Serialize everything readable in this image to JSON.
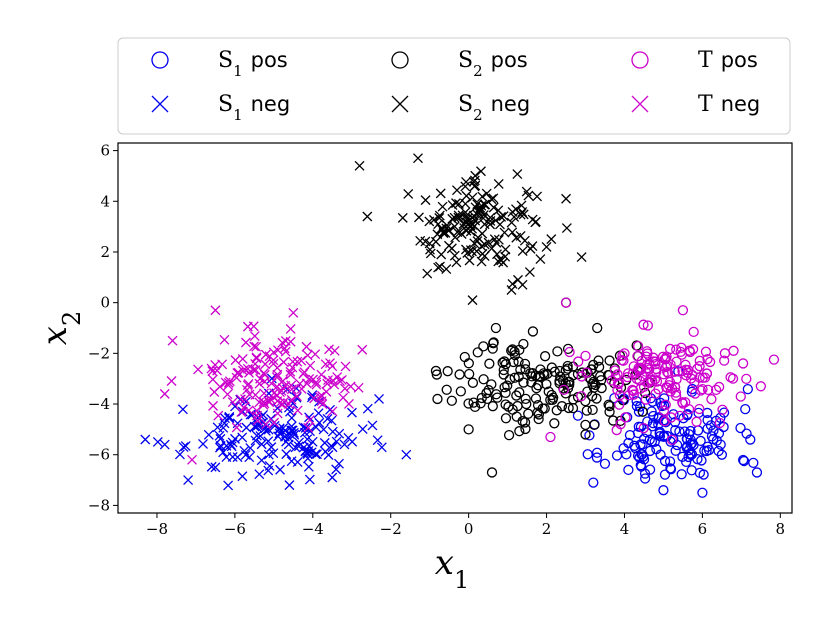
{
  "chart_data": {
    "type": "scatter",
    "title": "",
    "xlabel": "x_1",
    "ylabel": "x_2",
    "xlim": [
      -9,
      8.3
    ],
    "ylim": [
      -8.3,
      6.3
    ],
    "xticks": [
      -8,
      -6,
      -4,
      -2,
      0,
      2,
      4,
      6,
      8
    ],
    "yticks": [
      -8,
      -6,
      -4,
      -2,
      0,
      2,
      4,
      6
    ],
    "xtick_labels": [
      "−8",
      "−6",
      "−4",
      "−2",
      "0",
      "2",
      "4",
      "6",
      "8"
    ],
    "ytick_labels": [
      "−8",
      "−6",
      "−4",
      "−2",
      "0",
      "2",
      "4",
      "6"
    ],
    "grid": false,
    "legend_position": "above",
    "legend_columns": 3,
    "series": [
      {
        "id": "s1_pos",
        "name_main": "S",
        "name_sub": "1",
        "name_suffix": "pos",
        "marker": "circle",
        "color": "#0000ee",
        "center": [
          5.2,
          -5.3
        ],
        "spread": [
          0.85,
          0.95
        ],
        "n": 140,
        "seed": 11,
        "extra_points": [
          [
            3.2,
            -7.1
          ],
          [
            4.1,
            -6.6
          ],
          [
            5.0,
            -7.4
          ],
          [
            6.0,
            -7.5
          ],
          [
            7.4,
            -6.7
          ],
          [
            7.1,
            -4.2
          ],
          [
            4.4,
            -4.1
          ],
          [
            6.5,
            -6.0
          ]
        ]
      },
      {
        "id": "s1_neg",
        "name_main": "S",
        "name_sub": "1",
        "name_suffix": "neg",
        "marker": "x",
        "color": "#0000ee",
        "center": [
          -5.0,
          -5.3
        ],
        "spread": [
          1.1,
          0.75
        ],
        "n": 150,
        "seed": 23,
        "extra_points": [
          [
            -8.3,
            -5.4
          ],
          [
            -7.8,
            -5.6
          ],
          [
            -7.2,
            -7.0
          ],
          [
            -1.6,
            -6.0
          ],
          [
            -2.3,
            -3.8
          ],
          [
            -6.5,
            -6.5
          ],
          [
            -4.6,
            -7.2
          ],
          [
            -3.5,
            -6.9
          ]
        ]
      },
      {
        "id": "s2_pos",
        "name_main": "S",
        "name_sub": "2",
        "name_suffix": "pos",
        "marker": "circle",
        "color": "#000000",
        "center": [
          1.9,
          -3.2
        ],
        "spread": [
          1.15,
          0.85
        ],
        "n": 170,
        "seed": 37,
        "extra_points": [
          [
            -0.8,
            -3.8
          ],
          [
            0.6,
            -6.7
          ],
          [
            2.5,
            0.0
          ],
          [
            3.3,
            -1.0
          ],
          [
            0.7,
            -1.0
          ],
          [
            0.0,
            -5.0
          ],
          [
            3.0,
            -5.2
          ],
          [
            -0.2,
            -3.5
          ]
        ]
      },
      {
        "id": "s2_neg",
        "name_main": "S",
        "name_sub": "2",
        "name_suffix": "neg",
        "marker": "x",
        "color": "#000000",
        "center": [
          0.3,
          3.0
        ],
        "spread": [
          0.85,
          0.9
        ],
        "n": 160,
        "seed": 41,
        "extra_points": [
          [
            -2.8,
            5.4
          ],
          [
            -1.3,
            5.7
          ],
          [
            2.5,
            4.1
          ],
          [
            2.9,
            1.8
          ],
          [
            0.1,
            0.1
          ],
          [
            1.1,
            0.5
          ],
          [
            -2.6,
            3.4
          ],
          [
            2.0,
            2.2
          ]
        ]
      },
      {
        "id": "t_pos",
        "name_main": "T",
        "name_sub": "",
        "name_suffix": "pos",
        "marker": "circle",
        "color": "#cc00cc",
        "center": [
          5.1,
          -3.0
        ],
        "spread": [
          1.0,
          0.85
        ],
        "n": 150,
        "seed": 53,
        "extra_points": [
          [
            2.5,
            0.0
          ],
          [
            5.5,
            -0.3
          ],
          [
            7.5,
            -3.3
          ],
          [
            2.1,
            -5.3
          ],
          [
            6.8,
            -1.9
          ],
          [
            3.0,
            -2.1
          ],
          [
            4.0,
            -2.0
          ],
          [
            4.6,
            -0.9
          ]
        ]
      },
      {
        "id": "t_neg",
        "name_main": "T",
        "name_sub": "",
        "name_suffix": "neg",
        "marker": "x",
        "color": "#cc00cc",
        "center": [
          -5.0,
          -3.2
        ],
        "spread": [
          0.9,
          0.85
        ],
        "n": 150,
        "seed": 67,
        "extra_points": [
          [
            -6.5,
            -0.3
          ],
          [
            -4.5,
            -0.4
          ],
          [
            -7.6,
            -1.5
          ],
          [
            -7.1,
            -6.2
          ],
          [
            -7.8,
            -3.6
          ],
          [
            -3.3,
            -3.1
          ],
          [
            -5.2,
            -4.8
          ],
          [
            -6.6,
            -2.6
          ]
        ]
      }
    ]
  }
}
